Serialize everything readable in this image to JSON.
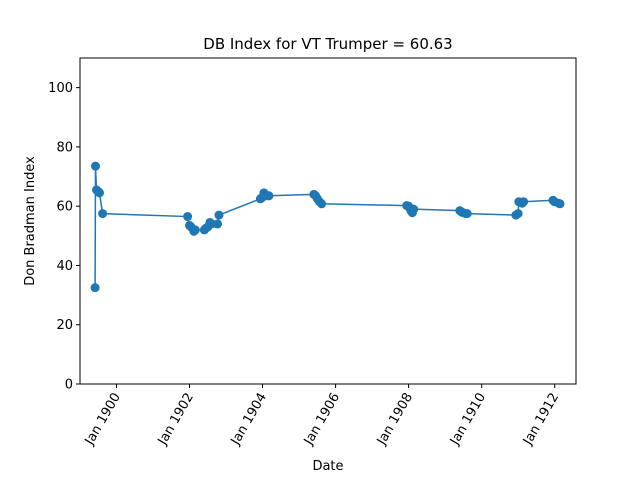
{
  "chart_data": {
    "type": "line",
    "title": "DB Index for VT Trumper = 60.63",
    "xlabel": "Date",
    "ylabel": "Don Bradman Index",
    "ylim": [
      0,
      110
    ],
    "xlim": [
      "1899-01-01",
      "1912-08-01"
    ],
    "y_ticks": [
      0,
      20,
      40,
      60,
      80,
      100
    ],
    "x_ticks": [
      {
        "date": "1900-01-01",
        "label": "Jan 1900"
      },
      {
        "date": "1902-01-01",
        "label": "Jan 1902"
      },
      {
        "date": "1904-01-01",
        "label": "Jan 1904"
      },
      {
        "date": "1906-01-01",
        "label": "Jan 1906"
      },
      {
        "date": "1908-01-01",
        "label": "Jan 1908"
      },
      {
        "date": "1910-01-01",
        "label": "Jan 1910"
      },
      {
        "date": "1912-01-01",
        "label": "Jan 1912"
      }
    ],
    "grid": false,
    "line_color": "#1f77b4",
    "marker": "circle",
    "series": [
      {
        "x": [
          "1899-06-01",
          "1899-06-05",
          "1899-06-15",
          "1899-07-01",
          "1899-07-15",
          "1899-08-15",
          "1901-12-13",
          "1902-01-01",
          "1902-01-17",
          "1902-02-14",
          "1902-02-28",
          "1902-05-29",
          "1902-06-12",
          "1902-07-03",
          "1902-07-24",
          "1902-08-11",
          "1902-10-09",
          "1902-10-23",
          "1903-12-11",
          "1904-01-01",
          "1904-01-15",
          "1904-02-26",
          "1904-03-05",
          "1905-05-29",
          "1905-06-15",
          "1905-07-03",
          "1905-07-24",
          "1905-08-14",
          "1907-12-13",
          "1908-01-01",
          "1908-01-10",
          "1908-01-24",
          "1908-02-07",
          "1908-02-21",
          "1909-05-27",
          "1909-06-14",
          "1909-07-01",
          "1909-07-26",
          "1909-08-09",
          "1910-12-09",
          "1910-12-31",
          "1911-01-07",
          "1911-02-10",
          "1911-02-24",
          "1911-12-15",
          "1911-12-30",
          "1912-02-09",
          "1912-02-23"
        ],
        "y": [
          32.5,
          73.5,
          65.5,
          65.0,
          64.5,
          57.5,
          56.5,
          53.5,
          53.0,
          51.5,
          52.0,
          52.0,
          52.5,
          53.0,
          54.5,
          54.0,
          54.0,
          57.0,
          62.5,
          63.0,
          64.5,
          63.5,
          63.5,
          64.0,
          63.5,
          62.5,
          61.5,
          60.8,
          60.2,
          60.0,
          59.5,
          58.5,
          57.8,
          59.0,
          58.5,
          58.0,
          57.8,
          57.5,
          57.5,
          57.0,
          57.5,
          61.5,
          61.0,
          61.5,
          62.0,
          61.5,
          61.0,
          60.8
        ]
      }
    ]
  }
}
